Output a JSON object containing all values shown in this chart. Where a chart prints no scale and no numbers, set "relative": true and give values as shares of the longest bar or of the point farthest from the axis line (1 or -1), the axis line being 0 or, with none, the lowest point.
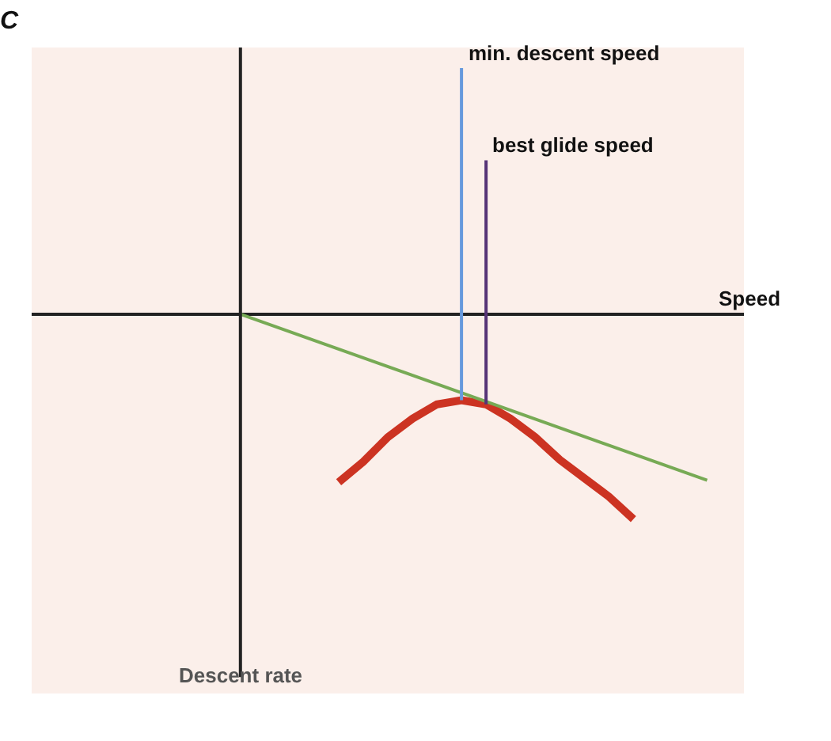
{
  "chart_data": {
    "type": "line",
    "title": "C",
    "xlabel": "Speed",
    "relative": true,
    "grid": false,
    "marker": "none",
    "categories": [
      null,
      null,
      null,
      null,
      null,
      null,
      null,
      null,
      null,
      null,
      null,
      null,
      null,
      null,
      null,
      null,
      null,
      null,
      null,
      null,
      null,
      null,
      null,
      null,
      null,
      null,
      null,
      null,
      null
    ],
    "series": [
      {
        "color": "#cc3322",
        "values": [
          null,
          null,
          null,
          null,
          null,
          null,
          null,
          null,
          null,
          null,
          null,
          null,
          -0.82,
          -0.72,
          -0.6,
          -0.51,
          -0.44,
          -0.42,
          -0.44,
          -0.51,
          -0.6,
          -0.71,
          -0.8,
          -0.89,
          -1.0,
          null,
          null,
          null,
          null
        ]
      },
      {
        "color": "#77aa55",
        "values": [
          null,
          null,
          null,
          null,
          null,
          null,
          null,
          null,
          0,
          null,
          null,
          null,
          null,
          null,
          null,
          null,
          null,
          null,
          null,
          null,
          null,
          null,
          null,
          null,
          null,
          null,
          null,
          -0.81,
          null
        ]
      }
    ],
    "annotations": [
      "min. descent speed",
      "best glide speed",
      "Descent rate"
    ]
  }
}
